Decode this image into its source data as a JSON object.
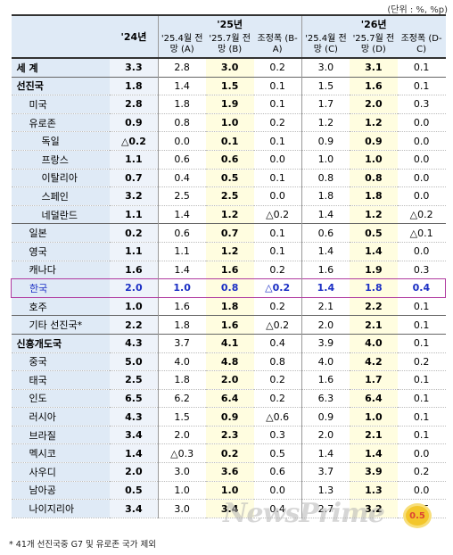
{
  "unit_note": "(단위 : %, %p)",
  "header": {
    "country_col": "",
    "y24": "'24년",
    "y25": "'25년",
    "y26": "'26년",
    "y25_apr": "'25.4월 전망 (A)",
    "y25_jul": "'25.7월 전망 (B)",
    "y25_adj": "조정폭 (B-A)",
    "y26_apr": "'25.4월 전망 (C)",
    "y26_jul": "'25.7월 전망 (D)",
    "y26_adj": "조정폭 (D-C)"
  },
  "rows": [
    {
      "name": "세    계",
      "level": 0,
      "grp": true,
      "v": [
        "3.3",
        "2.8",
        "3.0",
        "0.2",
        "3.0",
        "3.1",
        "0.1"
      ]
    },
    {
      "name": "선진국",
      "level": 0,
      "grp": true,
      "v": [
        "1.8",
        "1.4",
        "1.5",
        "0.1",
        "1.5",
        "1.6",
        "0.1"
      ]
    },
    {
      "name": "미국",
      "level": 1,
      "v": [
        "2.8",
        "1.8",
        "1.9",
        "0.1",
        "1.7",
        "2.0",
        "0.3"
      ]
    },
    {
      "name": "유로존",
      "level": 1,
      "v": [
        "0.9",
        "0.8",
        "1.0",
        "0.2",
        "1.2",
        "1.2",
        "0.0"
      ]
    },
    {
      "name": "독일",
      "level": 2,
      "v": [
        "△0.2",
        "0.0",
        "0.1",
        "0.1",
        "0.9",
        "0.9",
        "0.0"
      ]
    },
    {
      "name": "프랑스",
      "level": 2,
      "v": [
        "1.1",
        "0.6",
        "0.6",
        "0.0",
        "1.0",
        "1.0",
        "0.0"
      ]
    },
    {
      "name": "이탈리아",
      "level": 2,
      "v": [
        "0.7",
        "0.4",
        "0.5",
        "0.1",
        "0.8",
        "0.8",
        "0.0"
      ]
    },
    {
      "name": "스페인",
      "level": 2,
      "v": [
        "3.2",
        "2.5",
        "2.5",
        "0.0",
        "1.8",
        "1.8",
        "0.0"
      ]
    },
    {
      "name": "네덜란드",
      "level": 2,
      "v": [
        "1.1",
        "1.4",
        "1.2",
        "△0.2",
        "1.4",
        "1.2",
        "△0.2"
      ]
    },
    {
      "name": "일본",
      "level": 1,
      "grp": true,
      "v": [
        "0.2",
        "0.6",
        "0.7",
        "0.1",
        "0.6",
        "0.5",
        "△0.1"
      ]
    },
    {
      "name": "영국",
      "level": 1,
      "v": [
        "1.1",
        "1.1",
        "1.2",
        "0.1",
        "1.4",
        "1.4",
        "0.0"
      ]
    },
    {
      "name": "캐나다",
      "level": 1,
      "v": [
        "1.6",
        "1.4",
        "1.6",
        "0.2",
        "1.6",
        "1.9",
        "0.3"
      ]
    },
    {
      "name": "한국",
      "level": 1,
      "korea": true,
      "v": [
        "2.0",
        "1.0",
        "0.8",
        "△0.2",
        "1.4",
        "1.8",
        "0.4"
      ]
    },
    {
      "name": "호주",
      "level": 1,
      "v": [
        "1.0",
        "1.6",
        "1.8",
        "0.2",
        "2.1",
        "2.2",
        "0.1"
      ]
    },
    {
      "name": "기타 선진국*",
      "level": 1,
      "grp": true,
      "v": [
        "2.2",
        "1.8",
        "1.6",
        "△0.2",
        "2.0",
        "2.1",
        "0.1"
      ]
    },
    {
      "name": "신흥개도국",
      "level": 0,
      "grp": true,
      "v": [
        "4.3",
        "3.7",
        "4.1",
        "0.4",
        "3.9",
        "4.0",
        "0.1"
      ]
    },
    {
      "name": "중국",
      "level": 1,
      "v": [
        "5.0",
        "4.0",
        "4.8",
        "0.8",
        "4.0",
        "4.2",
        "0.2"
      ]
    },
    {
      "name": "태국",
      "level": 1,
      "v": [
        "2.5",
        "1.8",
        "2.0",
        "0.2",
        "1.6",
        "1.7",
        "0.1"
      ]
    },
    {
      "name": "인도",
      "level": 1,
      "v": [
        "6.5",
        "6.2",
        "6.4",
        "0.2",
        "6.3",
        "6.4",
        "0.1"
      ]
    },
    {
      "name": "러시아",
      "level": 1,
      "v": [
        "4.3",
        "1.5",
        "0.9",
        "△0.6",
        "0.9",
        "1.0",
        "0.1"
      ]
    },
    {
      "name": "브라질",
      "level": 1,
      "v": [
        "3.4",
        "2.0",
        "2.3",
        "0.3",
        "2.0",
        "2.1",
        "0.1"
      ]
    },
    {
      "name": "멕시코",
      "level": 1,
      "v": [
        "1.4",
        "△0.3",
        "0.2",
        "0.5",
        "1.4",
        "1.4",
        "0.0"
      ]
    },
    {
      "name": "사우디",
      "level": 1,
      "v": [
        "2.0",
        "3.0",
        "3.6",
        "0.6",
        "3.7",
        "3.9",
        "0.2"
      ]
    },
    {
      "name": "남아공",
      "level": 1,
      "v": [
        "0.5",
        "1.0",
        "1.0",
        "0.0",
        "1.3",
        "1.3",
        "0.0"
      ]
    },
    {
      "name": "나이지리아",
      "level": 1,
      "v": [
        "3.4",
        "3.0",
        "3.4",
        "0.4",
        "2.7",
        "3.2",
        "0.5"
      ]
    }
  ],
  "footnote": "* 41개 선진국중 G7 및 유로존 국가 제외",
  "watermark": "NewsPrime",
  "colors": {
    "header_bg": "#dfeaf6",
    "highlight_bg": "#fffde0",
    "korea_text": "#1b2fc4",
    "korea_border": "#b03aa0"
  }
}
